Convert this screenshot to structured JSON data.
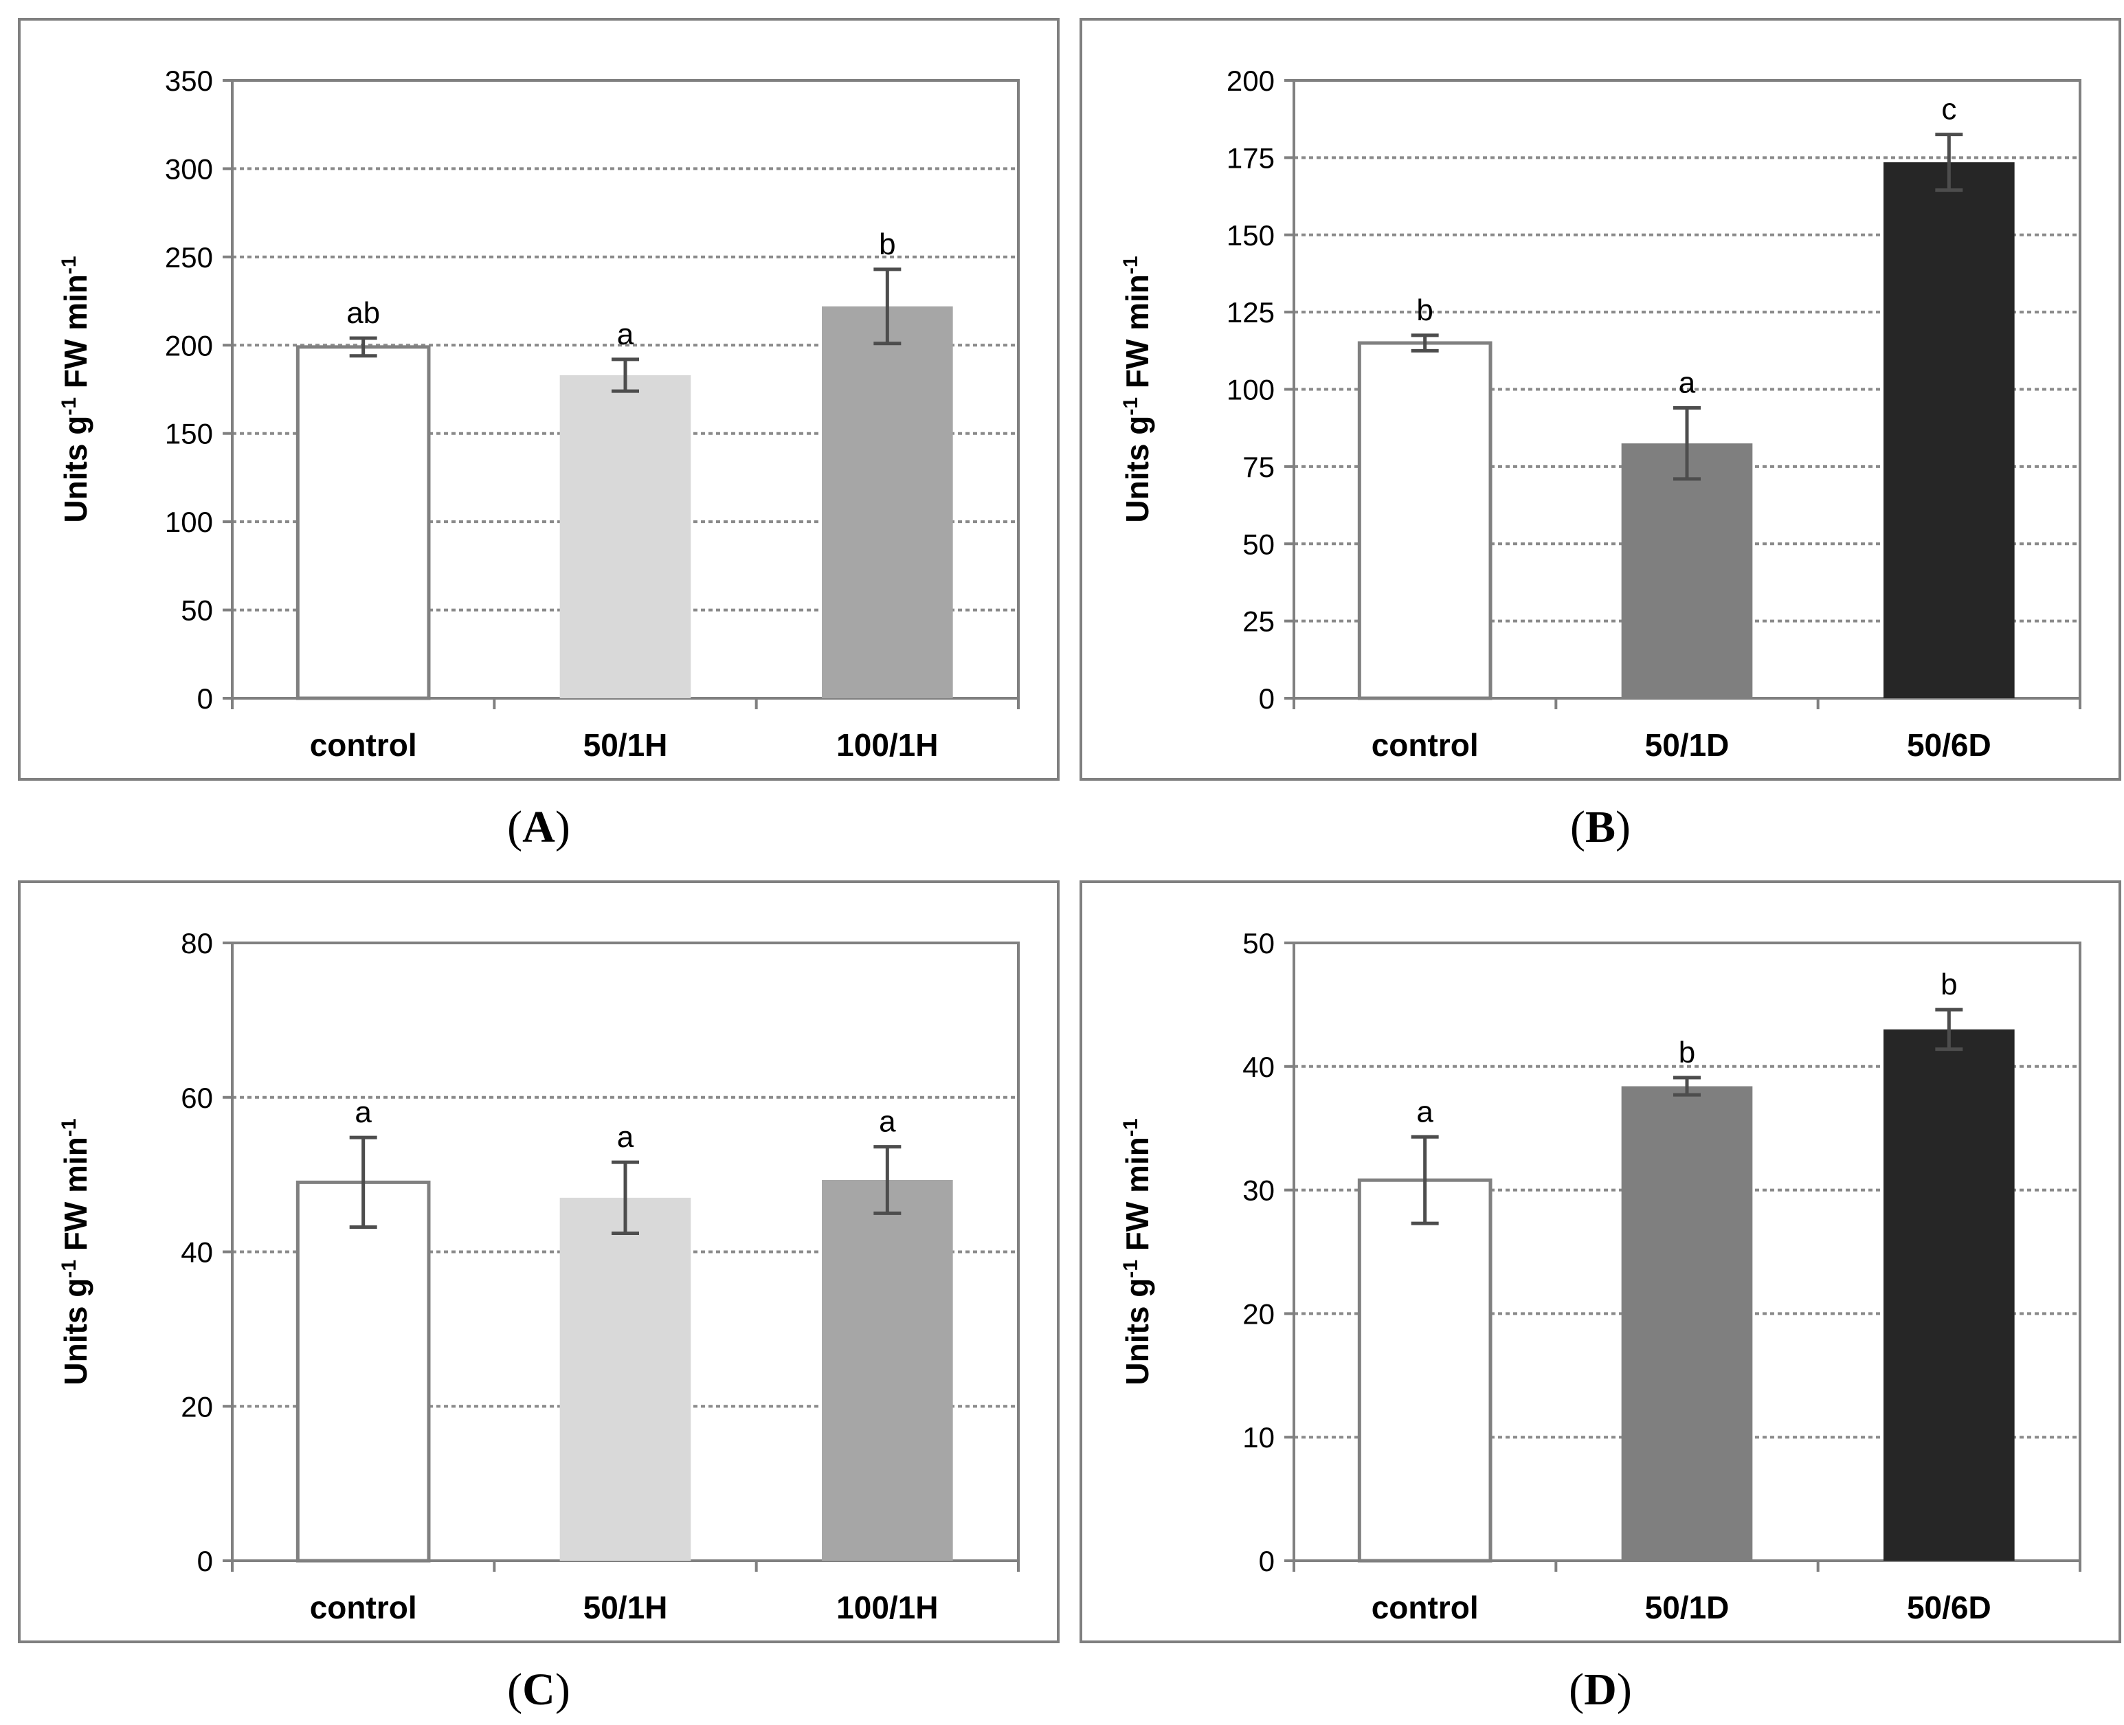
{
  "chart_data": [
    {
      "id": "A",
      "panel_label": "(A)",
      "type": "bar",
      "ylabel": "Units g-1 FW min-1",
      "ylabel_parts": {
        "pre": "Units g",
        "sup1": "-1",
        "mid": " FW min",
        "sup2": "-1"
      },
      "ylim": [
        0,
        350
      ],
      "yticks": [
        0,
        50,
        100,
        150,
        200,
        250,
        300,
        350
      ],
      "grid": true,
      "categories": [
        "control",
        "50/1H",
        "100/1H"
      ],
      "values": [
        199,
        183,
        222
      ],
      "errors": [
        5,
        9,
        21
      ],
      "letters": [
        "ab",
        "a",
        "b"
      ],
      "colors": [
        "#ffffff",
        "#d9d9d9",
        "#a6a6a6"
      ]
    },
    {
      "id": "B",
      "panel_label": "(B)",
      "type": "bar",
      "ylabel": "Units g-1 FW min-1",
      "ylabel_parts": {
        "pre": "Units g",
        "sup1": "-1",
        "mid": " FW min",
        "sup2": "-1"
      },
      "ylim": [
        0,
        200
      ],
      "yticks": [
        0,
        25,
        50,
        75,
        100,
        125,
        150,
        175,
        200
      ],
      "grid": true,
      "categories": [
        "control",
        "50/1D",
        "50/6D"
      ],
      "values": [
        115,
        82.5,
        173.5
      ],
      "errors": [
        2.5,
        11.5,
        9
      ],
      "letters": [
        "b",
        "a",
        "c"
      ],
      "colors": [
        "#ffffff",
        "#7f7f7f",
        "#262626"
      ]
    },
    {
      "id": "C",
      "panel_label": "(C)",
      "type": "bar",
      "ylabel": "Units g-1 FW min-1",
      "ylabel_parts": {
        "pre": "Units g",
        "sup1": "-1",
        "mid": " FW min",
        "sup2": "-1"
      },
      "ylim": [
        0,
        80
      ],
      "yticks": [
        0,
        20,
        40,
        60,
        80
      ],
      "grid": true,
      "categories": [
        "control",
        "50/1H",
        "100/1H"
      ],
      "values": [
        49,
        47,
        49.3
      ],
      "errors": [
        5.8,
        4.6,
        4.3
      ],
      "letters": [
        "a",
        "a",
        "a"
      ],
      "colors": [
        "#ffffff",
        "#d9d9d9",
        "#a6a6a6"
      ]
    },
    {
      "id": "D",
      "panel_label": "(D)",
      "type": "bar",
      "ylabel": "Units g-1 FW min-1",
      "ylabel_parts": {
        "pre": "Units g",
        "sup1": "-1",
        "mid": " FW min",
        "sup2": "-1"
      },
      "ylim": [
        0,
        50
      ],
      "yticks": [
        0,
        10,
        20,
        30,
        40,
        50
      ],
      "grid": true,
      "categories": [
        "control",
        "50/1D",
        "50/6D"
      ],
      "values": [
        30.8,
        38.4,
        43
      ],
      "errors": [
        3.5,
        0.7,
        1.6
      ],
      "letters": [
        "a",
        "b",
        "b"
      ],
      "colors": [
        "#ffffff",
        "#7f7f7f",
        "#262626"
      ]
    }
  ]
}
